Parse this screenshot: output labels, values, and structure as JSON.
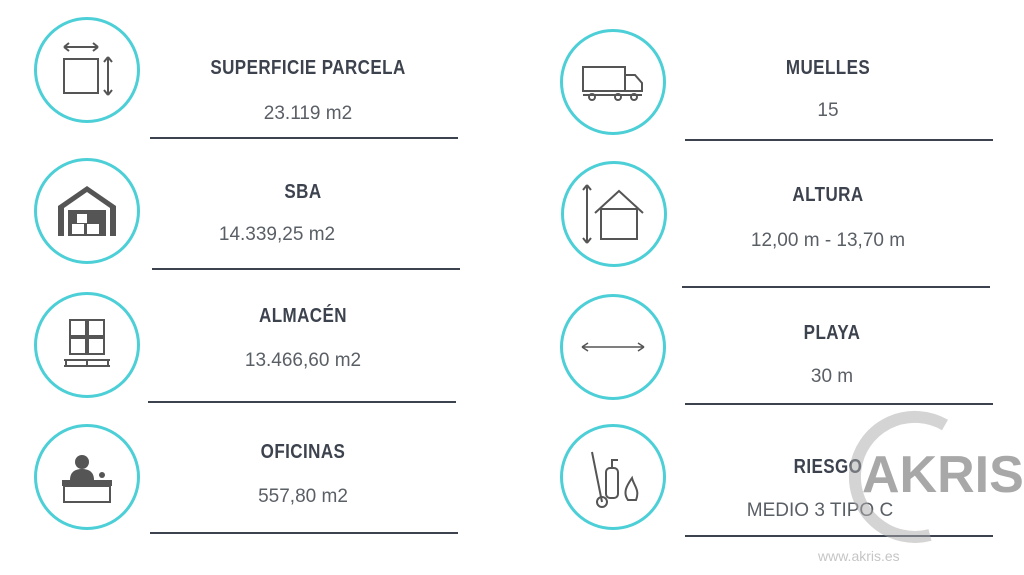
{
  "left": [
    {
      "icon": "area-dimensions-icon",
      "title": "SUPERFICIE PARCELA",
      "value": "23.119 m2"
    },
    {
      "icon": "warehouse-icon",
      "title": "SBA",
      "value": "14.339,25 m2"
    },
    {
      "icon": "pallet-boxes-icon",
      "title": "ALMACÉN",
      "value": "13.466,60 m2"
    },
    {
      "icon": "reception-desk-icon",
      "title": "OFICINAS",
      "value": "557,80 m2"
    }
  ],
  "right": [
    {
      "icon": "truck-icon",
      "title": "MUELLES",
      "value": "15"
    },
    {
      "icon": "house-height-icon",
      "title": "ALTURA",
      "value": "12,00 m - 13,70 m"
    },
    {
      "icon": "horizontal-arrow-icon",
      "title": "PLAYA",
      "value": "30 m"
    },
    {
      "icon": "fire-extinguisher-icon",
      "title": "RIESGO",
      "value": "MEDIO 3 TIPO C"
    }
  ],
  "watermark": {
    "brand": "AKRIS",
    "url": "www.akris.es"
  },
  "colors": {
    "accent": "#4ccfd6",
    "text": "#3d434e"
  }
}
